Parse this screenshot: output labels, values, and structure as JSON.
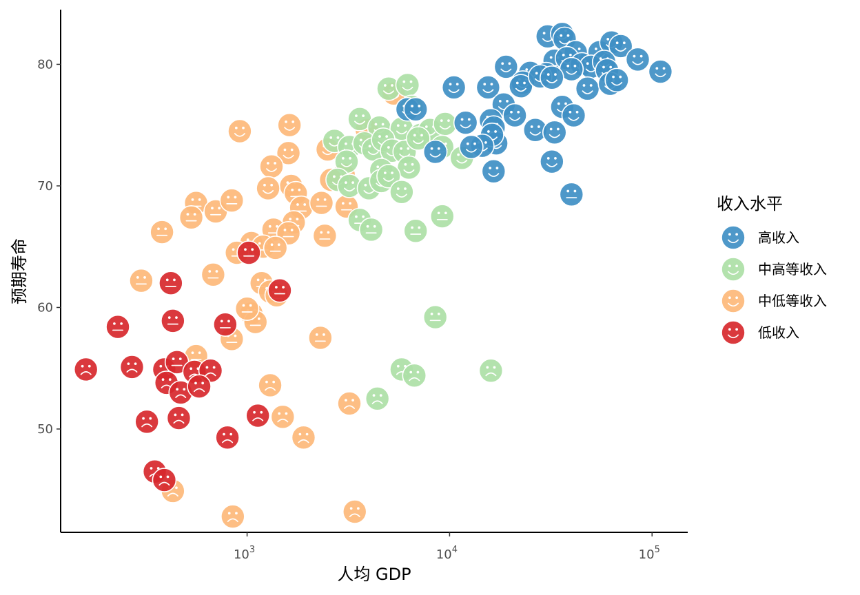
{
  "chart_data": {
    "type": "scatter",
    "title": "",
    "xlabel": "人均 GDP",
    "ylabel": "预期寿命",
    "x_scale": "log10",
    "xlim": [
      120,
      150000
    ],
    "ylim": [
      41.5,
      84.5
    ],
    "x_ticks": [
      {
        "value": 1000,
        "base": "10",
        "exp": "3"
      },
      {
        "value": 10000,
        "base": "10",
        "exp": "4"
      },
      {
        "value": 100000,
        "base": "10",
        "exp": "5"
      }
    ],
    "y_ticks": [
      {
        "value": 50,
        "label": "50"
      },
      {
        "value": 60,
        "label": "60"
      },
      {
        "value": 70,
        "label": "70"
      },
      {
        "value": 80,
        "label": "80"
      }
    ],
    "grid": false,
    "legend": {
      "title": "收入水平",
      "position": "right"
    },
    "face_rule": "face expression by life expectancy: smile ≥ 69.5, neutral 55.5–69.5, frown < 55.5",
    "series": [
      {
        "name": "高收入",
        "color": "#3f8fc4",
        "points": [
          [
            30500,
            82.3
          ],
          [
            36000,
            82.5
          ],
          [
            37000,
            82.1
          ],
          [
            42000,
            81.0
          ],
          [
            55000,
            81.0
          ],
          [
            63000,
            81.8
          ],
          [
            70000,
            81.5
          ],
          [
            85000,
            80.4
          ],
          [
            110000,
            79.4
          ],
          [
            33000,
            80.3
          ],
          [
            38000,
            80.5
          ],
          [
            45000,
            80.0
          ],
          [
            50000,
            79.8
          ],
          [
            58000,
            80.2
          ],
          [
            60000,
            79.5
          ],
          [
            40000,
            79.6
          ],
          [
            30000,
            79.2
          ],
          [
            25000,
            79.3
          ],
          [
            19000,
            79.8
          ],
          [
            23000,
            78.5
          ],
          [
            22500,
            78.2
          ],
          [
            28000,
            79.0
          ],
          [
            32000,
            78.9
          ],
          [
            48000,
            78.0
          ],
          [
            62000,
            78.4
          ],
          [
            67000,
            78.7
          ],
          [
            10500,
            78.1
          ],
          [
            15500,
            78.1
          ],
          [
            18500,
            76.7
          ],
          [
            6200,
            76.3
          ],
          [
            6800,
            76.3
          ],
          [
            21000,
            75.8
          ],
          [
            36000,
            76.5
          ],
          [
            41000,
            75.8
          ],
          [
            12000,
            75.2
          ],
          [
            16000,
            75.4
          ],
          [
            16500,
            74.8
          ],
          [
            17000,
            73.5
          ],
          [
            16200,
            74.2
          ],
          [
            26500,
            74.6
          ],
          [
            33000,
            74.4
          ],
          [
            14500,
            73.3
          ],
          [
            12800,
            73.2
          ],
          [
            8500,
            72.8
          ],
          [
            32000,
            72.0
          ],
          [
            16500,
            71.2
          ],
          [
            40000,
            69.3
          ]
        ]
      },
      {
        "name": "中高等收入",
        "color": "#addfa6",
        "points": [
          [
            5000,
            78.0
          ],
          [
            6200,
            78.3
          ],
          [
            6500,
            76.5
          ],
          [
            3600,
            75.5
          ],
          [
            4500,
            74.8
          ],
          [
            5800,
            74.7
          ],
          [
            7200,
            74.2
          ],
          [
            8000,
            74.6
          ],
          [
            9500,
            75.1
          ],
          [
            2700,
            73.7
          ],
          [
            3200,
            73.2
          ],
          [
            3800,
            73.5
          ],
          [
            4200,
            73.0
          ],
          [
            4700,
            73.8
          ],
          [
            5200,
            72.9
          ],
          [
            6000,
            72.8
          ],
          [
            7000,
            73.9
          ],
          [
            9200,
            73.2
          ],
          [
            11500,
            72.3
          ],
          [
            3100,
            72.0
          ],
          [
            4600,
            71.3
          ],
          [
            6300,
            71.5
          ],
          [
            2800,
            70.5
          ],
          [
            3200,
            70.0
          ],
          [
            4000,
            69.8
          ],
          [
            4600,
            70.4
          ],
          [
            5000,
            70.8
          ],
          [
            5800,
            69.5
          ],
          [
            3600,
            67.2
          ],
          [
            4100,
            66.4
          ],
          [
            6800,
            66.3
          ],
          [
            9200,
            67.5
          ],
          [
            8500,
            59.2
          ],
          [
            5800,
            54.9
          ],
          [
            6700,
            54.4
          ],
          [
            16000,
            54.8
          ],
          [
            4400,
            52.5
          ]
        ]
      },
      {
        "name": "中低等收入",
        "color": "#fdb87a",
        "points": [
          [
            5300,
            77.6
          ],
          [
            3900,
            74.6
          ],
          [
            920,
            74.5
          ],
          [
            1620,
            75.0
          ],
          [
            1600,
            72.7
          ],
          [
            1320,
            71.6
          ],
          [
            2500,
            73.0
          ],
          [
            3000,
            70.9
          ],
          [
            1650,
            70.0
          ],
          [
            1740,
            69.4
          ],
          [
            1270,
            69.8
          ],
          [
            2600,
            70.5
          ],
          [
            1850,
            68.2
          ],
          [
            2330,
            68.6
          ],
          [
            3100,
            68.3
          ],
          [
            560,
            68.6
          ],
          [
            700,
            67.9
          ],
          [
            840,
            68.8
          ],
          [
            530,
            67.4
          ],
          [
            1700,
            67.0
          ],
          [
            380,
            66.2
          ],
          [
            1350,
            66.4
          ],
          [
            1600,
            66.1
          ],
          [
            2420,
            65.9
          ],
          [
            1050,
            65.3
          ],
          [
            1200,
            65.0
          ],
          [
            1380,
            64.9
          ],
          [
            890,
            64.5
          ],
          [
            680,
            62.7
          ],
          [
            300,
            62.2
          ],
          [
            1180,
            62.0
          ],
          [
            1300,
            61.3
          ],
          [
            1400,
            61.0
          ],
          [
            1050,
            59.5
          ],
          [
            1100,
            58.8
          ],
          [
            1000,
            59.9
          ],
          [
            840,
            57.4
          ],
          [
            2300,
            57.5
          ],
          [
            560,
            56.0
          ],
          [
            1300,
            53.6
          ],
          [
            1500,
            51.0
          ],
          [
            1900,
            49.3
          ],
          [
            3200,
            52.1
          ],
          [
            430,
            44.9
          ],
          [
            850,
            42.8
          ],
          [
            3400,
            43.2
          ]
        ]
      },
      {
        "name": "低收入",
        "color": "#d7282c",
        "points": [
          [
            1020,
            64.5
          ],
          [
            420,
            62.0
          ],
          [
            1450,
            61.4
          ],
          [
            230,
            58.4
          ],
          [
            430,
            58.9
          ],
          [
            780,
            58.6
          ],
          [
            160,
            54.9
          ],
          [
            270,
            55.1
          ],
          [
            390,
            54.9
          ],
          [
            450,
            55.5
          ],
          [
            550,
            54.7
          ],
          [
            660,
            54.8
          ],
          [
            400,
            53.8
          ],
          [
            470,
            53.0
          ],
          [
            580,
            53.5
          ],
          [
            320,
            50.6
          ],
          [
            460,
            50.9
          ],
          [
            1130,
            51.1
          ],
          [
            800,
            49.3
          ],
          [
            350,
            46.5
          ],
          [
            390,
            45.8
          ]
        ]
      }
    ]
  }
}
